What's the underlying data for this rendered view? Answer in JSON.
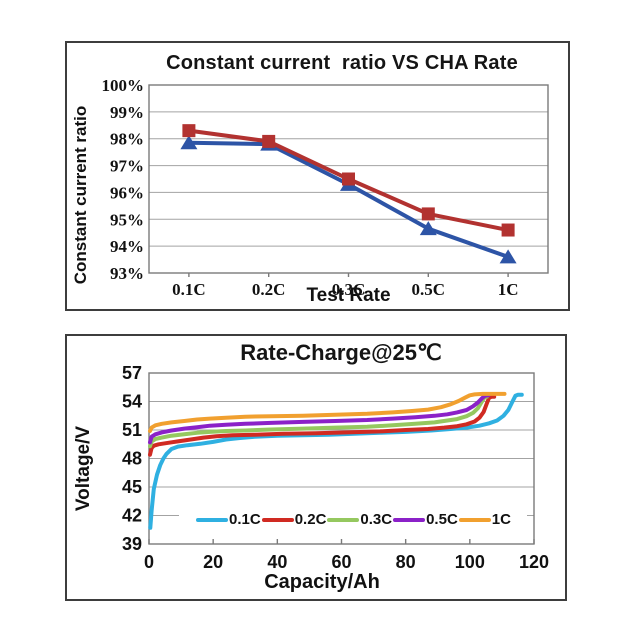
{
  "page": {
    "background": "#ffffff",
    "panel_border_color": "#3d3d3d"
  },
  "chart_data": [
    {
      "type": "line",
      "title": "Constant current  ratio VS CHA Rate",
      "xlabel": "Test Rate",
      "ylabel": "Constant current ratio",
      "categories": [
        "0.1C",
        "0.2C",
        "0.3C",
        "0.5C",
        "1C"
      ],
      "ylim": [
        93,
        100
      ],
      "yticks": [
        "100%",
        "99%",
        "98%",
        "97%",
        "96%",
        "95%",
        "94%",
        "93%"
      ],
      "ytick_values": [
        100,
        99,
        98,
        97,
        96,
        95,
        94,
        93
      ],
      "grid": "horizontal",
      "legend": "none",
      "gridline_color": "#a3a3a3",
      "axis_color": "#7a7a7a",
      "series": [
        {
          "name": "blue-triangle-series",
          "marker": "triangle",
          "color": "#2d54a6",
          "values": [
            97.85,
            97.8,
            96.3,
            94.65,
            93.6
          ]
        },
        {
          "name": "red-square-series",
          "marker": "square",
          "color": "#b23230",
          "values": [
            98.3,
            97.9,
            96.5,
            95.2,
            94.6
          ]
        }
      ]
    },
    {
      "type": "line",
      "title": "Rate-Charge@25℃",
      "xlabel": "Capacity/Ah",
      "ylabel": "Voltage/V",
      "xlim": [
        0,
        120
      ],
      "xticks": [
        0,
        20,
        40,
        60,
        80,
        100,
        120
      ],
      "ylim": [
        39,
        57
      ],
      "yticks": [
        57,
        54,
        51,
        48,
        45,
        42,
        39
      ],
      "grid": "horizontal",
      "legend_position": "bottom-inside",
      "gridline_color": "#a3a3a3",
      "axis_color": "#7a7a7a",
      "series": [
        {
          "name": "0.1C",
          "color": "#2fb0e1",
          "points": [
            [
              0.4,
              40.7
            ],
            [
              0.8,
              42.5
            ],
            [
              1.5,
              44.8
            ],
            [
              2.5,
              46.3
            ],
            [
              3.5,
              47.3
            ],
            [
              4.5,
              48.0
            ],
            [
              5.5,
              48.5
            ],
            [
              7,
              49.0
            ],
            [
              9,
              49.25
            ],
            [
              12,
              49.4
            ],
            [
              16,
              49.55
            ],
            [
              20,
              49.75
            ],
            [
              24,
              50.0
            ],
            [
              28,
              50.15
            ],
            [
              33,
              50.3
            ],
            [
              40,
              50.4
            ],
            [
              48,
              50.45
            ],
            [
              56,
              50.5
            ],
            [
              64,
              50.6
            ],
            [
              72,
              50.7
            ],
            [
              80,
              50.8
            ],
            [
              88,
              50.95
            ],
            [
              94,
              51.1
            ],
            [
              99,
              51.25
            ],
            [
              103,
              51.45
            ],
            [
              106,
              51.7
            ],
            [
              108.5,
              52.0
            ],
            [
              110.5,
              52.5
            ],
            [
              112,
              53.1
            ],
            [
              113.3,
              54.0
            ],
            [
              114.2,
              54.6
            ],
            [
              115,
              54.7
            ],
            [
              116.2,
              54.7
            ]
          ]
        },
        {
          "name": "0.2C",
          "color": "#d02a22",
          "points": [
            [
              0.3,
              48.4
            ],
            [
              0.8,
              49.1
            ],
            [
              1.5,
              49.35
            ],
            [
              3,
              49.5
            ],
            [
              6,
              49.65
            ],
            [
              9,
              49.8
            ],
            [
              13,
              50.0
            ],
            [
              17,
              50.2
            ],
            [
              21,
              50.35
            ],
            [
              26,
              50.45
            ],
            [
              33,
              50.5
            ],
            [
              42,
              50.6
            ],
            [
              52,
              50.65
            ],
            [
              62,
              50.75
            ],
            [
              72,
              50.85
            ],
            [
              80,
              51.0
            ],
            [
              87,
              51.1
            ],
            [
              92,
              51.25
            ],
            [
              96,
              51.4
            ],
            [
              99,
              51.6
            ],
            [
              101.5,
              51.9
            ],
            [
              103,
              52.3
            ],
            [
              104.3,
              52.9
            ],
            [
              105.2,
              53.7
            ],
            [
              106,
              54.4
            ],
            [
              106.8,
              54.5
            ],
            [
              107.6,
              54.5
            ]
          ]
        },
        {
          "name": "0.3C",
          "color": "#95c85f",
          "points": [
            [
              0.3,
              49.3
            ],
            [
              0.8,
              49.8
            ],
            [
              2,
              50.05
            ],
            [
              4,
              50.2
            ],
            [
              7,
              50.4
            ],
            [
              11,
              50.55
            ],
            [
              15,
              50.7
            ],
            [
              19,
              50.8
            ],
            [
              24,
              50.9
            ],
            [
              30,
              50.95
            ],
            [
              38,
              51.05
            ],
            [
              48,
              51.15
            ],
            [
              58,
              51.25
            ],
            [
              68,
              51.35
            ],
            [
              76,
              51.5
            ],
            [
              83,
              51.65
            ],
            [
              89,
              51.8
            ],
            [
              93,
              52.0
            ],
            [
              96,
              52.15
            ],
            [
              99,
              52.45
            ],
            [
              101,
              52.8
            ],
            [
              102.5,
              53.3
            ],
            [
              103.8,
              54.0
            ],
            [
              104.6,
              54.45
            ],
            [
              105.3,
              54.5
            ]
          ]
        },
        {
          "name": "0.5C",
          "color": "#8b21c8",
          "points": [
            [
              0.3,
              49.7
            ],
            [
              0.8,
              50.3
            ],
            [
              2,
              50.55
            ],
            [
              4,
              50.75
            ],
            [
              7,
              50.95
            ],
            [
              11,
              51.15
            ],
            [
              15,
              51.3
            ],
            [
              19,
              51.45
            ],
            [
              24,
              51.55
            ],
            [
              30,
              51.65
            ],
            [
              38,
              51.75
            ],
            [
              48,
              51.85
            ],
            [
              58,
              51.95
            ],
            [
              68,
              52.05
            ],
            [
              76,
              52.2
            ],
            [
              83,
              52.35
            ],
            [
              89,
              52.5
            ],
            [
              93,
              52.65
            ],
            [
              96,
              52.85
            ],
            [
              99,
              53.1
            ],
            [
              101,
              53.5
            ],
            [
              102.5,
              53.9
            ],
            [
              103.8,
              54.35
            ],
            [
              104.8,
              54.6
            ],
            [
              105.8,
              54.65
            ]
          ]
        },
        {
          "name": "1C",
          "color": "#f1a02f",
          "points": [
            [
              0.3,
              50.9
            ],
            [
              0.8,
              51.25
            ],
            [
              2,
              51.5
            ],
            [
              4,
              51.65
            ],
            [
              7,
              51.8
            ],
            [
              11,
              51.95
            ],
            [
              15,
              52.1
            ],
            [
              19,
              52.2
            ],
            [
              24,
              52.3
            ],
            [
              30,
              52.4
            ],
            [
              38,
              52.45
            ],
            [
              48,
              52.5
            ],
            [
              58,
              52.6
            ],
            [
              68,
              52.7
            ],
            [
              76,
              52.85
            ],
            [
              82,
              53.0
            ],
            [
              87,
              53.15
            ],
            [
              91,
              53.4
            ],
            [
              94,
              53.7
            ],
            [
              96.5,
              54.05
            ],
            [
              98.5,
              54.4
            ],
            [
              100,
              54.65
            ],
            [
              101.5,
              54.75
            ],
            [
              104,
              54.8
            ],
            [
              110.8,
              54.8
            ]
          ]
        }
      ]
    }
  ]
}
